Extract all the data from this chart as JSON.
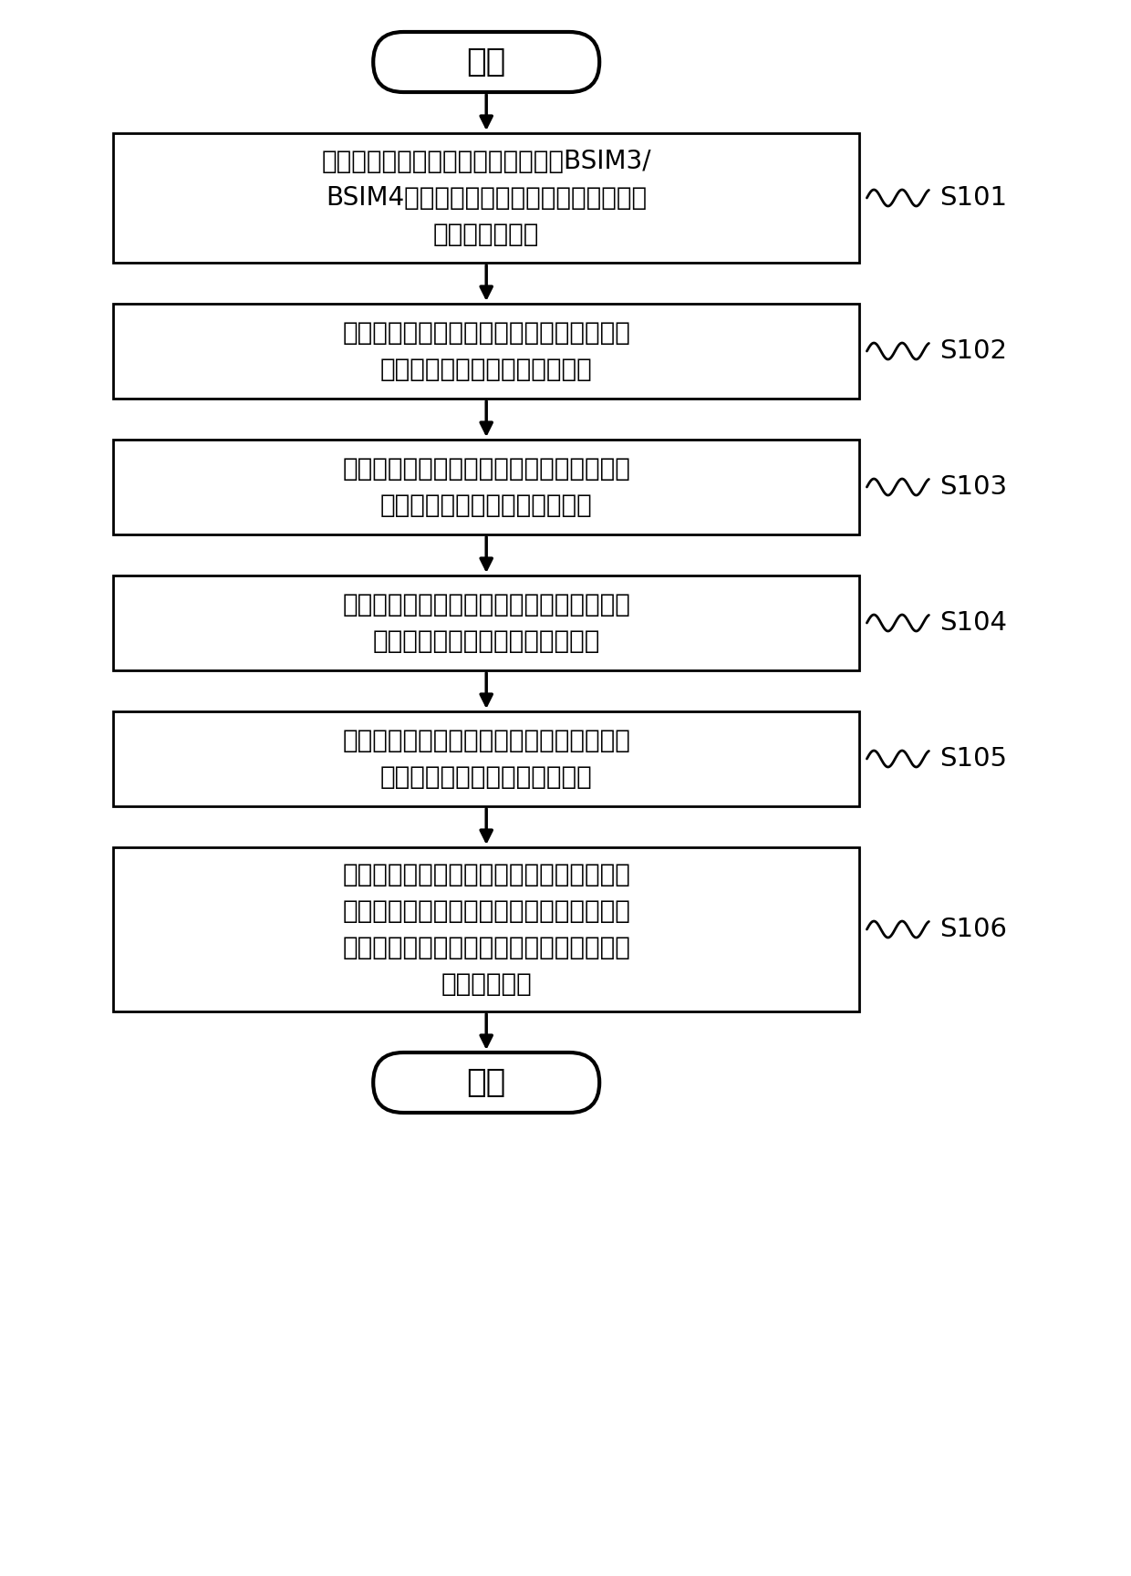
{
  "start_text": "开始",
  "end_text": "结束",
  "boxes": [
    {
      "label": "创建核心场效应晶体管模型，并采用BSIM3/\nBSIM4的参数模拟所述核心场效应晶体管模\n型电流电压特性",
      "step": "S101",
      "n_lines": 3
    },
    {
      "label": "创建连接于所述核心场效应晶体管模型的栅\n极和漏极之间的第一二极管模型",
      "step": "S102",
      "n_lines": 2
    },
    {
      "label": "创建连接于所述核心场效应晶体管模型的栅\n极和源极之间的第二二极管模型",
      "step": "S103",
      "n_lines": 2
    },
    {
      "label": "创建连接于所述核心场效应晶体管模型的漏\n极和体电极之间的第三二极管模型",
      "step": "S104",
      "n_lines": 2
    },
    {
      "label": "创建连接于所述核心场效应晶体管模型的源\n极和体电极之间第四二极管模型",
      "step": "S105",
      "n_lines": 2
    },
    {
      "label": "采用第一二极管模型、第二二极管模型、第\n三二极管模型和第四二极管模型描述结型场\n效应晶体管的内部寄生二极管的电容电压特\n性和漏电特性",
      "step": "S106",
      "n_lines": 4
    }
  ],
  "bg_color": "#ffffff",
  "box_edge_color": "#000000",
  "text_color": "#000000",
  "arrow_color": "#000000",
  "step_label_color": "#000000",
  "fig_w": 12.4,
  "fig_h": 17.28,
  "dpi": 100
}
